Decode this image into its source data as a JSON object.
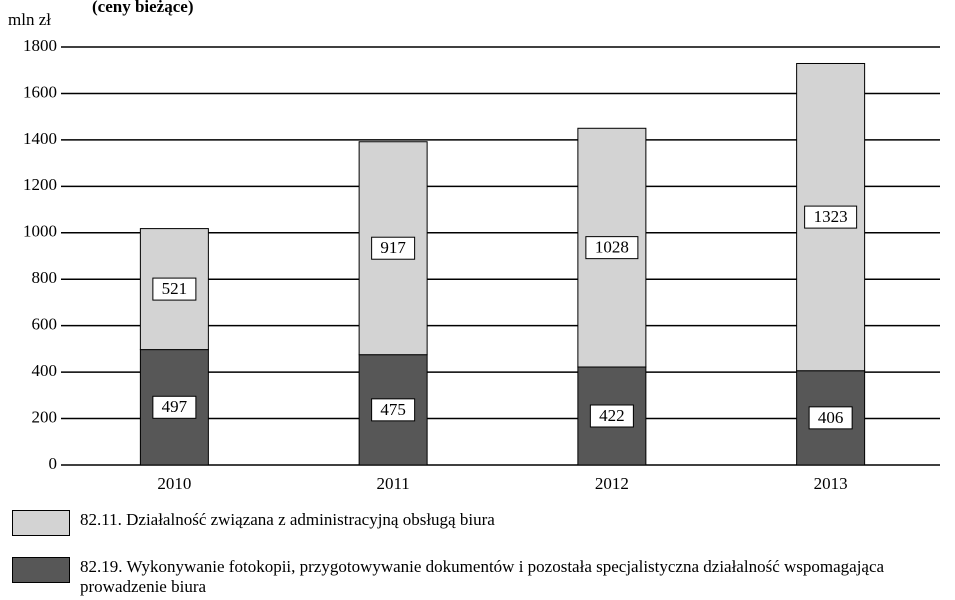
{
  "chart_data": {
    "type": "stacked_bar",
    "subtitle": "(ceny bieżące)",
    "y_label": "mln zł",
    "categories": [
      "2010",
      "2011",
      "2012",
      "2013"
    ],
    "series": [
      {
        "name": "82.19. Wykonywanie fotokopii, przygotowywanie dokumentów i pozostała specjalistyczna działalność wspomagająca prowadzenie biura",
        "color": "#575757",
        "values": [
          497,
          475,
          422,
          406
        ]
      },
      {
        "name": "82.11. Działalność związana z administracyjną obsługą biura",
        "color": "#d3d3d3",
        "values": [
          521,
          917,
          1028,
          1323
        ]
      }
    ],
    "ylim": [
      0,
      1800
    ],
    "yticks": [
      0,
      200,
      400,
      600,
      800,
      1000,
      1200,
      1400,
      1600,
      1800
    ],
    "grid": true
  }
}
